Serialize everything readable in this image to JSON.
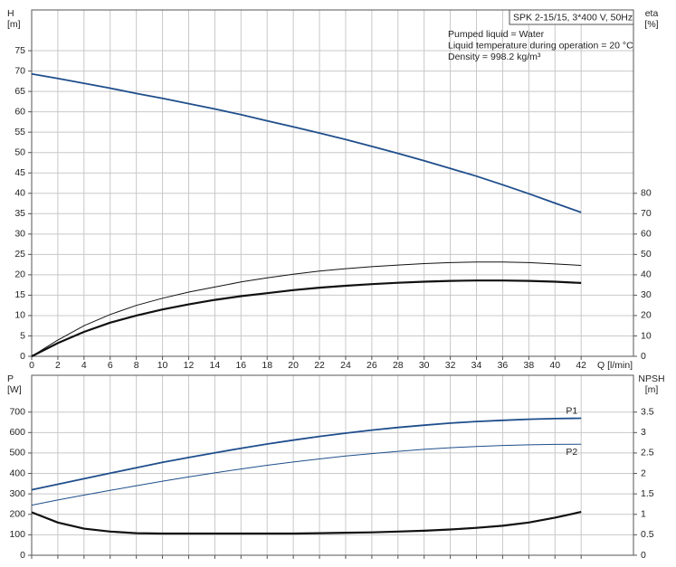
{
  "chart_data": [
    {
      "type": "line",
      "y_label": [
        "H",
        "[m]"
      ],
      "y2_label": [
        "eta",
        "[%]"
      ],
      "x_label": "Q [l/min]",
      "annotation": {
        "title": "SPK 2-15/15, 3*400 V, 50Hz",
        "lines": [
          "Pumped liquid = Water",
          "Liquid temperature during operation = 20 °C",
          "Density = 998.2 kg/m³"
        ]
      },
      "x": [
        0,
        2,
        4,
        6,
        8,
        10,
        12,
        14,
        16,
        18,
        20,
        22,
        24,
        26,
        28,
        30,
        32,
        34,
        36,
        38,
        40,
        42
      ],
      "xlim": [
        0,
        46
      ],
      "xticks": [
        0,
        2,
        4,
        6,
        8,
        10,
        12,
        14,
        16,
        18,
        20,
        22,
        24,
        26,
        28,
        30,
        32,
        34,
        36,
        38,
        40,
        42
      ],
      "show_xtick_labels": true,
      "ylim": [
        0,
        85
      ],
      "yticks": [
        0,
        5,
        10,
        15,
        20,
        25,
        30,
        35,
        40,
        45,
        50,
        55,
        60,
        65,
        70,
        75
      ],
      "y2lim": [
        0,
        170
      ],
      "y2ticks": [
        0,
        10,
        20,
        30,
        40,
        50,
        60,
        70,
        80
      ],
      "grid": true,
      "series": [
        {
          "color": "#1f4e8c",
          "line_width": 1.8,
          "values": [
            69.3,
            68.2,
            67.0,
            65.8,
            64.5,
            63.3,
            62.0,
            60.7,
            59.3,
            57.8,
            56.3,
            54.8,
            53.2,
            51.5,
            49.8,
            48.0,
            46.1,
            44.2,
            42.1,
            39.9,
            37.6,
            35.3
          ]
        },
        {
          "color": "#111111",
          "line_width": 1,
          "axis": "y2",
          "values": [
            0,
            8,
            15,
            20.5,
            25,
            28.5,
            31.5,
            34,
            36.5,
            38.5,
            40.3,
            41.8,
            43,
            44,
            44.8,
            45.5,
            46,
            46.3,
            46.3,
            46,
            45.3,
            44.6
          ]
        },
        {
          "color": "#111111",
          "line_width": 2.2,
          "axis": "y2",
          "values": [
            0,
            6.5,
            12,
            16.5,
            20,
            23,
            25.5,
            27.7,
            29.5,
            31,
            32.5,
            33.7,
            34.6,
            35.4,
            36.1,
            36.6,
            37,
            37.2,
            37.2,
            37,
            36.6,
            36
          ]
        }
      ]
    },
    {
      "type": "line",
      "y_label": [
        "P",
        "[W]"
      ],
      "y2_label": [
        "NPSH",
        "[m]"
      ],
      "x": [
        0,
        2,
        4,
        6,
        8,
        10,
        12,
        14,
        16,
        18,
        20,
        22,
        24,
        26,
        28,
        30,
        32,
        34,
        36,
        38,
        40,
        42
      ],
      "xlim": [
        0,
        46
      ],
      "xticks": [
        0,
        2,
        4,
        6,
        8,
        10,
        12,
        14,
        16,
        18,
        20,
        22,
        24,
        26,
        28,
        30,
        32,
        34,
        36,
        38,
        40,
        42
      ],
      "show_xtick_labels": false,
      "ylim": [
        0,
        880
      ],
      "yticks": [
        0,
        100,
        200,
        300,
        400,
        500,
        600,
        700
      ],
      "y2lim": [
        0,
        4.4
      ],
      "y2ticks": [
        0,
        0.5,
        1.0,
        1.5,
        2.0,
        2.5,
        3.0,
        3.5
      ],
      "grid": true,
      "series": [
        {
          "name": "P1",
          "label_position": "above",
          "color": "#1f4e8c",
          "line_width": 1.8,
          "values": [
            320,
            347,
            374,
            401,
            428,
            454,
            478,
            501,
            523,
            544,
            563,
            581,
            597,
            612,
            625,
            636,
            646,
            654,
            660,
            665,
            668,
            670
          ]
        },
        {
          "name": "P2",
          "label_position": "below",
          "color": "#1f4e8c",
          "line_width": 1,
          "values": [
            245,
            270,
            294,
            317,
            340,
            362,
            383,
            403,
            422,
            440,
            456,
            471,
            485,
            497,
            508,
            518,
            526,
            532,
            537,
            540,
            542,
            543
          ]
        },
        {
          "color": "#111111",
          "line_width": 2.2,
          "axis": "y2",
          "values": [
            1.05,
            0.8,
            0.65,
            0.58,
            0.54,
            0.53,
            0.53,
            0.53,
            0.53,
            0.53,
            0.53,
            0.54,
            0.55,
            0.56,
            0.58,
            0.6,
            0.63,
            0.67,
            0.72,
            0.8,
            0.92,
            1.06
          ]
        }
      ]
    }
  ]
}
